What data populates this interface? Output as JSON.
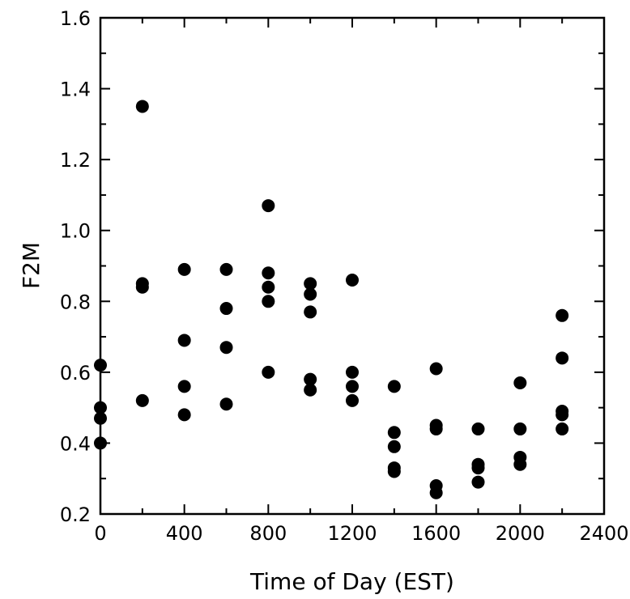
{
  "chart_data": {
    "type": "scatter",
    "xlabel": "Time of Day (EST)",
    "ylabel": "F2M",
    "xlim": [
      0,
      2400
    ],
    "ylim": [
      0.2,
      1.6
    ],
    "xticks": [
      0,
      400,
      800,
      1200,
      1600,
      2000,
      2400
    ],
    "yticks": [
      0.2,
      0.4,
      0.6,
      0.8,
      1.0,
      1.2,
      1.4,
      1.6
    ],
    "xtick_labels": [
      "0",
      "400",
      "800",
      "1200",
      "1600",
      "2000",
      "2400"
    ],
    "ytick_labels": [
      "0.2",
      "0.4",
      "0.6",
      "0.8",
      "1.0",
      "1.2",
      "1.4",
      "1.6"
    ],
    "grid": false,
    "marker_color": "#000000",
    "points": [
      {
        "x": 0,
        "y": 0.62
      },
      {
        "x": 0,
        "y": 0.5
      },
      {
        "x": 0,
        "y": 0.47
      },
      {
        "x": 0,
        "y": 0.4
      },
      {
        "x": 200,
        "y": 1.35
      },
      {
        "x": 200,
        "y": 0.85
      },
      {
        "x": 200,
        "y": 0.84
      },
      {
        "x": 200,
        "y": 0.52
      },
      {
        "x": 400,
        "y": 0.89
      },
      {
        "x": 400,
        "y": 0.69
      },
      {
        "x": 400,
        "y": 0.56
      },
      {
        "x": 400,
        "y": 0.48
      },
      {
        "x": 600,
        "y": 0.89
      },
      {
        "x": 600,
        "y": 0.78
      },
      {
        "x": 600,
        "y": 0.67
      },
      {
        "x": 600,
        "y": 0.51
      },
      {
        "x": 800,
        "y": 1.07
      },
      {
        "x": 800,
        "y": 0.88
      },
      {
        "x": 800,
        "y": 0.84
      },
      {
        "x": 800,
        "y": 0.8
      },
      {
        "x": 800,
        "y": 0.6
      },
      {
        "x": 1000,
        "y": 0.85
      },
      {
        "x": 1000,
        "y": 0.82
      },
      {
        "x": 1000,
        "y": 0.77
      },
      {
        "x": 1000,
        "y": 0.58
      },
      {
        "x": 1000,
        "y": 0.55
      },
      {
        "x": 1200,
        "y": 0.86
      },
      {
        "x": 1200,
        "y": 0.6
      },
      {
        "x": 1200,
        "y": 0.56
      },
      {
        "x": 1200,
        "y": 0.52
      },
      {
        "x": 1400,
        "y": 0.56
      },
      {
        "x": 1400,
        "y": 0.43
      },
      {
        "x": 1400,
        "y": 0.39
      },
      {
        "x": 1400,
        "y": 0.33
      },
      {
        "x": 1400,
        "y": 0.32
      },
      {
        "x": 1600,
        "y": 0.61
      },
      {
        "x": 1600,
        "y": 0.45
      },
      {
        "x": 1600,
        "y": 0.44
      },
      {
        "x": 1600,
        "y": 0.28
      },
      {
        "x": 1600,
        "y": 0.26
      },
      {
        "x": 1800,
        "y": 0.44
      },
      {
        "x": 1800,
        "y": 0.34
      },
      {
        "x": 1800,
        "y": 0.33
      },
      {
        "x": 1800,
        "y": 0.29
      },
      {
        "x": 2000,
        "y": 0.57
      },
      {
        "x": 2000,
        "y": 0.44
      },
      {
        "x": 2000,
        "y": 0.36
      },
      {
        "x": 2000,
        "y": 0.34
      },
      {
        "x": 2200,
        "y": 0.76
      },
      {
        "x": 2200,
        "y": 0.64
      },
      {
        "x": 2200,
        "y": 0.49
      },
      {
        "x": 2200,
        "y": 0.48
      },
      {
        "x": 2200,
        "y": 0.44
      }
    ]
  }
}
